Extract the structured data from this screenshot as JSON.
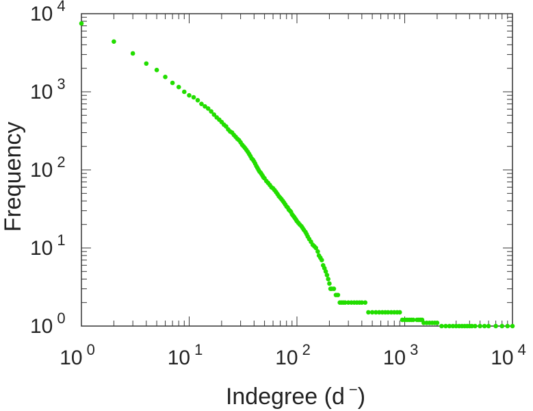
{
  "chart_data": {
    "type": "scatter",
    "xscale": "log",
    "yscale": "log",
    "xlim": [
      1,
      10000
    ],
    "ylim": [
      1,
      10000
    ],
    "xlabel": "Indegree (d",
    "xlabel_suffix": ")",
    "xlabel_sup": "−",
    "ylabel": "Frequency",
    "x_ticks": [
      {
        "base": "10",
        "exp": "0"
      },
      {
        "base": "10",
        "exp": "1"
      },
      {
        "base": "10",
        "exp": "2"
      },
      {
        "base": "10",
        "exp": "3"
      },
      {
        "base": "10",
        "exp": "4"
      }
    ],
    "y_ticks": [
      {
        "base": "10",
        "exp": "0"
      },
      {
        "base": "10",
        "exp": "1"
      },
      {
        "base": "10",
        "exp": "2"
      },
      {
        "base": "10",
        "exp": "3"
      },
      {
        "base": "10",
        "exp": "4"
      }
    ],
    "grid": false,
    "point_color": "#22dd00",
    "axis_color": "#333333",
    "points": [
      [
        1,
        7500
      ],
      [
        2,
        4400
      ],
      [
        3,
        3100
      ],
      [
        4,
        2300
      ],
      [
        5,
        1900
      ],
      [
        6,
        1550
      ],
      [
        7,
        1300
      ],
      [
        8,
        1150
      ],
      [
        9,
        1000
      ],
      [
        10,
        900
      ],
      [
        11,
        850
      ],
      [
        12,
        780
      ],
      [
        13,
        700
      ],
      [
        14,
        650
      ],
      [
        15,
        610
      ],
      [
        16,
        560
      ],
      [
        17,
        510
      ],
      [
        18,
        470
      ],
      [
        19,
        440
      ],
      [
        20,
        410
      ],
      [
        21,
        380
      ],
      [
        22,
        360
      ],
      [
        23,
        330
      ],
      [
        24,
        310
      ],
      [
        25,
        300
      ],
      [
        26,
        280
      ],
      [
        27,
        265
      ],
      [
        28,
        250
      ],
      [
        29,
        240
      ],
      [
        30,
        225
      ],
      [
        31,
        210
      ],
      [
        32,
        200
      ],
      [
        33,
        190
      ],
      [
        34,
        180
      ],
      [
        35,
        170
      ],
      [
        36,
        160
      ],
      [
        37,
        150
      ],
      [
        38,
        140
      ],
      [
        39,
        135
      ],
      [
        40,
        128
      ],
      [
        41,
        120
      ],
      [
        42,
        112
      ],
      [
        43,
        106
      ],
      [
        44,
        100
      ],
      [
        45,
        95
      ],
      [
        46,
        92
      ],
      [
        47,
        88
      ],
      [
        48,
        84
      ],
      [
        49,
        80
      ],
      [
        50,
        78
      ],
      [
        52,
        72
      ],
      [
        54,
        68
      ],
      [
        56,
        64
      ],
      [
        58,
        60
      ],
      [
        60,
        58
      ],
      [
        62,
        55
      ],
      [
        64,
        52
      ],
      [
        66,
        49
      ],
      [
        68,
        46
      ],
      [
        70,
        44
      ],
      [
        72,
        42
      ],
      [
        74,
        40
      ],
      [
        76,
        38
      ],
      [
        78,
        36
      ],
      [
        80,
        34
      ],
      [
        82,
        33
      ],
      [
        84,
        31
      ],
      [
        86,
        30
      ],
      [
        88,
        29
      ],
      [
        90,
        27
      ],
      [
        92,
        26
      ],
      [
        94,
        25
      ],
      [
        96,
        24
      ],
      [
        98,
        23
      ],
      [
        100,
        22
      ],
      [
        103,
        21
      ],
      [
        106,
        20
      ],
      [
        110,
        19
      ],
      [
        113,
        18
      ],
      [
        116,
        17
      ],
      [
        120,
        16
      ],
      [
        123,
        15
      ],
      [
        126,
        14
      ],
      [
        130,
        13
      ],
      [
        135,
        12
      ],
      [
        140,
        11
      ],
      [
        145,
        10.5
      ],
      [
        150,
        10
      ],
      [
        156,
        9
      ],
      [
        160,
        8
      ],
      [
        165,
        7.5
      ],
      [
        170,
        7
      ],
      [
        175,
        6
      ],
      [
        180,
        5.5
      ],
      [
        185,
        5
      ],
      [
        190,
        4.5
      ],
      [
        195,
        4
      ],
      [
        200,
        3.5
      ],
      [
        205,
        3
      ],
      [
        210,
        3
      ],
      [
        220,
        3
      ],
      [
        230,
        2.5
      ],
      [
        240,
        2.5
      ],
      [
        250,
        2
      ],
      [
        260,
        2
      ],
      [
        270,
        2
      ],
      [
        280,
        2
      ],
      [
        300,
        2
      ],
      [
        320,
        2
      ],
      [
        340,
        2
      ],
      [
        360,
        2
      ],
      [
        380,
        2
      ],
      [
        400,
        2
      ],
      [
        430,
        2
      ],
      [
        460,
        1.5
      ],
      [
        500,
        1.5
      ],
      [
        540,
        1.5
      ],
      [
        580,
        1.5
      ],
      [
        620,
        1.5
      ],
      [
        660,
        1.5
      ],
      [
        700,
        1.5
      ],
      [
        750,
        1.5
      ],
      [
        800,
        1.5
      ],
      [
        850,
        1.5
      ],
      [
        900,
        1.5
      ],
      [
        950,
        1.2
      ],
      [
        1000,
        1.2
      ],
      [
        1050,
        1.2
      ],
      [
        1100,
        1.2
      ],
      [
        1150,
        1.2
      ],
      [
        1200,
        1.2
      ],
      [
        1300,
        1.2
      ],
      [
        1350,
        1.2
      ],
      [
        1400,
        1.2
      ],
      [
        1450,
        1.2
      ],
      [
        1500,
        1.1
      ],
      [
        1600,
        1.1
      ],
      [
        1700,
        1.1
      ],
      [
        1800,
        1.1
      ],
      [
        1900,
        1.1
      ],
      [
        2000,
        1.1
      ],
      [
        2200,
        1
      ],
      [
        2400,
        1
      ],
      [
        2600,
        1
      ],
      [
        2800,
        1
      ],
      [
        3000,
        1
      ],
      [
        3200,
        1
      ],
      [
        3400,
        1
      ],
      [
        3600,
        1
      ],
      [
        3800,
        1
      ],
      [
        4000,
        1
      ],
      [
        4200,
        1
      ],
      [
        4500,
        1
      ],
      [
        5000,
        1
      ],
      [
        5500,
        1
      ],
      [
        6000,
        1
      ],
      [
        7000,
        1
      ],
      [
        8000,
        1
      ],
      [
        9000,
        1
      ],
      [
        10000,
        1
      ]
    ]
  }
}
